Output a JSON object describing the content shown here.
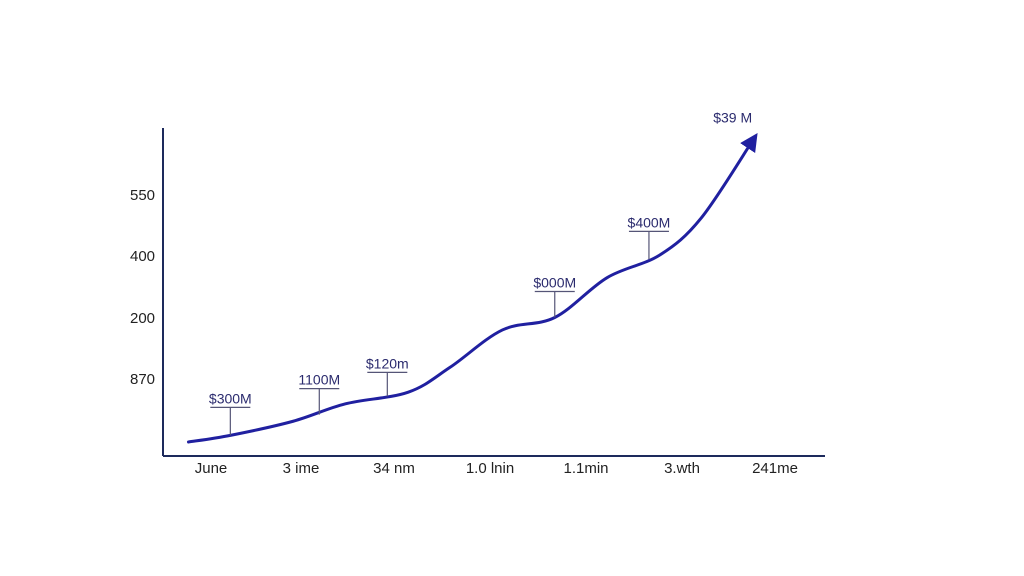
{
  "chart_data": {
    "type": "line",
    "title": "",
    "xlabel": "",
    "ylabel": "",
    "y_tick_labels": [
      "550",
      "400",
      "200",
      "870"
    ],
    "x_tick_labels": [
      "June",
      "3 ime",
      "34 nm",
      "1.0 lnin",
      "1.1min",
      "3.wth",
      "241me"
    ],
    "grid": false,
    "legend": "none",
    "series": [
      {
        "color": "#2020a0",
        "points": [
          {
            "x": 0,
            "y": 0.0
          },
          {
            "x": 0.8,
            "y": 0.8
          },
          {
            "x": 2.0,
            "y": 2.5
          },
          {
            "x": 3.0,
            "y": 4.6
          },
          {
            "x": 4.2,
            "y": 6.0
          },
          {
            "x": 5.0,
            "y": 9.0
          },
          {
            "x": 6.0,
            "y": 13.5
          },
          {
            "x": 7.0,
            "y": 15.0
          },
          {
            "x": 8.0,
            "y": 19.8
          },
          {
            "x": 9.0,
            "y": 22.5
          },
          {
            "x": 9.8,
            "y": 27.0
          },
          {
            "x": 10.8,
            "y": 36.5
          }
        ],
        "arrow_end": true
      }
    ],
    "annotations": [
      {
        "label": "$300M",
        "x": 0.8,
        "y": 0.8,
        "stem": 28
      },
      {
        "label": "1100M",
        "x": 2.5,
        "y": 3.3,
        "stem": 26
      },
      {
        "label": "$120m",
        "x": 3.8,
        "y": 5.5,
        "stem": 24
      },
      {
        "label": "$000M",
        "x": 7.0,
        "y": 15.0,
        "stem": 26
      },
      {
        "label": "$400M",
        "x": 8.8,
        "y": 22.0,
        "stem": 28
      },
      {
        "label": "$39 M",
        "x": 10.4,
        "y": 38.5,
        "stem": 0
      }
    ],
    "xlim": [
      -0.2,
      11.4
    ],
    "ylim": [
      0,
      40
    ]
  },
  "colors": {
    "axis": "#1d2a5c",
    "line": "#2020a0",
    "stem": "#555577"
  }
}
